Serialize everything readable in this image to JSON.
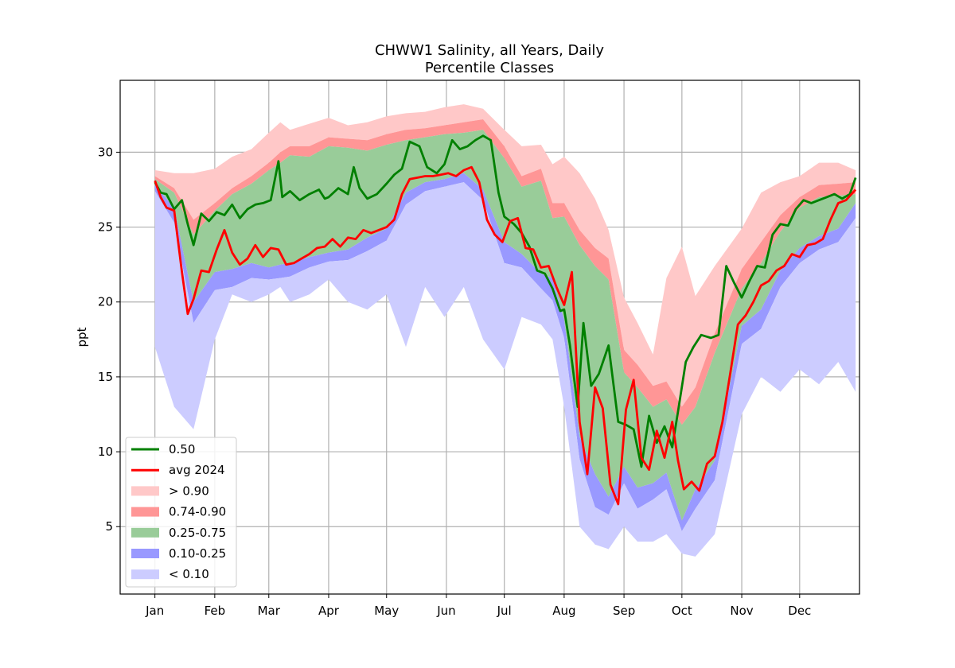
{
  "chart_data": {
    "type": "area",
    "title": "CHWW1 Salinity, all Years, Daily",
    "subtitle": "Percentile Classes",
    "xlabel": "",
    "ylabel": "ppt",
    "ylim": [
      0.5,
      34.8
    ],
    "xlim": [
      -18,
      365
    ],
    "x_tick_labels": [
      "Jan",
      "Feb",
      "Mar",
      "Apr",
      "May",
      "Jun",
      "Jul",
      "Aug",
      "Sep",
      "Oct",
      "Nov",
      "Dec"
    ],
    "x_tick_days": [
      0,
      31,
      59,
      90,
      120,
      151,
      181,
      212,
      243,
      273,
      304,
      334
    ],
    "y_ticks": [
      5,
      10,
      15,
      20,
      25,
      30
    ],
    "grid": true,
    "legend_position": "lower-left",
    "legend": [
      "0.50",
      "avg 2024",
      "> 0.90",
      "0.74-0.90",
      "0.25-0.75",
      "0.10-0.25",
      "< 0.10"
    ],
    "colors": {
      "median": "#008000",
      "avg": "#ff0000",
      "gt90": "#ffc8c8",
      "p74_90": "#ff9696",
      "p25_75": "#99cc99",
      "p10_25": "#9999ff",
      "lt10": "#ccccff"
    },
    "series": [
      {
        "name": "0.50",
        "x": [
          0,
          3,
          6,
          10,
          14,
          17,
          20,
          24,
          28,
          32,
          36,
          40,
          44,
          48,
          52,
          56,
          60,
          64,
          66,
          70,
          75,
          80,
          85,
          88,
          90,
          95,
          100,
          103,
          106,
          110,
          115,
          120,
          124,
          128,
          132,
          137,
          141,
          146,
          150,
          154,
          158,
          162,
          166,
          170,
          174,
          178,
          181,
          186,
          190,
          194,
          198,
          202,
          206,
          210,
          212,
          215,
          219,
          222,
          226,
          230,
          235,
          240,
          244,
          248,
          252,
          256,
          260,
          264,
          268,
          271,
          275,
          279,
          283,
          288,
          292,
          296,
          300,
          304,
          308,
          312,
          316,
          320,
          324,
          328,
          332,
          336,
          340,
          344,
          348,
          352,
          356,
          360,
          363
        ],
        "y": [
          28.0,
          27.3,
          27.2,
          26.2,
          26.8,
          25.2,
          23.8,
          25.9,
          25.4,
          26.0,
          25.8,
          26.5,
          25.6,
          26.2,
          26.5,
          26.6,
          26.8,
          29.4,
          27.0,
          27.4,
          26.8,
          27.2,
          27.5,
          26.9,
          27.0,
          27.6,
          27.2,
          29.0,
          27.6,
          26.9,
          27.2,
          27.9,
          28.5,
          28.9,
          30.7,
          30.4,
          29.0,
          28.6,
          29.2,
          30.8,
          30.2,
          30.4,
          30.8,
          31.1,
          30.8,
          27.3,
          25.7,
          25.2,
          24.6,
          23.7,
          22.1,
          21.9,
          20.9,
          19.4,
          19.5,
          17.1,
          13.0,
          18.6,
          14.4,
          15.2,
          17.1,
          12.0,
          11.8,
          11.5,
          9.0,
          12.4,
          10.6,
          11.7,
          10.3,
          12.7,
          16.0,
          17.0,
          17.8,
          17.6,
          17.8,
          22.4,
          21.3,
          20.3,
          21.4,
          22.4,
          22.3,
          24.5,
          25.2,
          25.1,
          26.2,
          26.8,
          26.6,
          26.8,
          27.0,
          27.2,
          26.9,
          27.2,
          28.3
        ]
      },
      {
        "name": "avg 2024",
        "x": [
          0,
          3,
          6,
          10,
          14,
          17,
          20,
          24,
          28,
          32,
          36,
          40,
          44,
          48,
          52,
          56,
          60,
          64,
          68,
          72,
          76,
          80,
          84,
          88,
          92,
          96,
          100,
          104,
          108,
          112,
          116,
          120,
          124,
          128,
          132,
          136,
          140,
          144,
          148,
          152,
          156,
          160,
          164,
          168,
          172,
          176,
          180,
          184,
          188,
          192,
          196,
          200,
          204,
          208,
          212,
          216,
          220,
          224,
          228,
          232,
          236,
          240,
          244,
          248,
          252,
          256,
          260,
          264,
          268,
          271,
          274,
          278,
          282,
          286,
          290,
          294,
          298,
          302,
          306,
          310,
          314,
          318,
          322,
          326,
          330,
          334,
          338,
          342,
          346,
          350,
          354,
          358,
          363
        ],
        "y": [
          28.1,
          27.0,
          26.3,
          26.1,
          22.0,
          19.2,
          20.2,
          22.1,
          22.0,
          23.5,
          24.8,
          23.3,
          22.5,
          22.9,
          23.8,
          23.0,
          23.6,
          23.5,
          22.5,
          22.6,
          22.9,
          23.2,
          23.6,
          23.7,
          24.2,
          23.7,
          24.3,
          24.2,
          24.8,
          24.6,
          24.8,
          25.0,
          25.5,
          27.2,
          28.2,
          28.3,
          28.4,
          28.4,
          28.5,
          28.6,
          28.4,
          28.8,
          29.0,
          28.0,
          25.5,
          24.5,
          24.0,
          25.4,
          25.6,
          23.6,
          23.5,
          22.3,
          22.4,
          21.0,
          19.8,
          22.0,
          12.0,
          8.5,
          14.3,
          12.9,
          7.8,
          6.5,
          12.8,
          14.8,
          9.6,
          8.8,
          11.4,
          9.6,
          12.0,
          9.4,
          7.5,
          8.0,
          7.4,
          9.2,
          9.7,
          12.0,
          15.2,
          18.5,
          19.1,
          20.0,
          21.1,
          21.4,
          22.1,
          22.4,
          23.2,
          23.0,
          23.8,
          23.9,
          24.2,
          25.5,
          26.6,
          26.8,
          27.5
        ]
      }
    ],
    "bands": [
      {
        "name": "> 0.90",
        "x": [
          0,
          10,
          20,
          31,
          40,
          50,
          59,
          65,
          70,
          80,
          90,
          100,
          110,
          120,
          130,
          140,
          150,
          160,
          170,
          181,
          190,
          200,
          206,
          212,
          220,
          228,
          235,
          243,
          250,
          258,
          265,
          273,
          280,
          290,
          304,
          314,
          324,
          334,
          344,
          354,
          363
        ],
        "low": [
          28.4,
          27.6,
          25.5,
          26.6,
          27.6,
          28.4,
          29.3,
          30.0,
          30.4,
          30.4,
          31.0,
          30.9,
          30.8,
          31.2,
          31.5,
          31.6,
          31.8,
          32.0,
          32.2,
          30.4,
          28.4,
          28.9,
          26.6,
          26.6,
          24.8,
          23.6,
          22.9,
          16.8,
          15.8,
          14.4,
          14.7,
          13.0,
          14.3,
          17.9,
          22.2,
          24.0,
          25.8,
          27.0,
          27.8,
          27.9,
          28.0
        ],
        "high": [
          28.8,
          28.6,
          28.6,
          28.9,
          29.7,
          30.2,
          31.3,
          32.0,
          31.5,
          31.9,
          32.3,
          31.8,
          32.0,
          32.4,
          32.6,
          32.7,
          33.0,
          33.2,
          32.9,
          31.5,
          30.4,
          30.5,
          29.2,
          29.7,
          28.6,
          26.9,
          24.8,
          20.3,
          18.6,
          16.5,
          21.6,
          23.7,
          20.4,
          22.4,
          24.9,
          27.3,
          28.0,
          28.4,
          29.3,
          29.3,
          28.8
        ]
      },
      {
        "name": "0.74-0.90",
        "x": [
          0,
          10,
          20,
          31,
          40,
          50,
          59,
          65,
          70,
          80,
          90,
          100,
          110,
          120,
          130,
          140,
          150,
          160,
          170,
          181,
          190,
          200,
          206,
          212,
          220,
          228,
          235,
          243,
          250,
          258,
          265,
          273,
          280,
          290,
          304,
          314,
          324,
          334,
          344,
          354,
          363
        ],
        "low": [
          28.2,
          27.3,
          24.5,
          26.1,
          27.2,
          27.9,
          28.8,
          29.3,
          29.8,
          29.7,
          30.4,
          30.3,
          30.1,
          30.5,
          30.8,
          31.0,
          31.2,
          31.3,
          31.5,
          29.6,
          27.7,
          28.1,
          25.6,
          25.7,
          23.8,
          22.4,
          21.5,
          15.3,
          14.3,
          13.0,
          13.5,
          11.8,
          13.0,
          16.6,
          20.9,
          22.6,
          24.7,
          26.3,
          27.0,
          27.1,
          27.2
        ],
        "high": [
          28.4,
          27.6,
          25.5,
          26.6,
          27.6,
          28.4,
          29.3,
          30.0,
          30.4,
          30.4,
          31.0,
          30.9,
          30.8,
          31.2,
          31.5,
          31.6,
          31.8,
          32.0,
          32.2,
          30.4,
          28.4,
          28.9,
          26.6,
          26.6,
          24.8,
          23.6,
          22.9,
          16.8,
          15.8,
          14.4,
          14.7,
          13.0,
          14.3,
          17.9,
          22.2,
          24.0,
          25.8,
          27.0,
          27.8,
          27.9,
          28.0
        ]
      },
      {
        "name": "0.25-0.75",
        "x": [
          0,
          10,
          20,
          31,
          40,
          50,
          59,
          65,
          70,
          80,
          90,
          100,
          110,
          120,
          130,
          140,
          150,
          160,
          170,
          181,
          190,
          200,
          206,
          212,
          220,
          228,
          235,
          243,
          250,
          258,
          265,
          273,
          280,
          290,
          304,
          314,
          324,
          334,
          344,
          354,
          363
        ],
        "low": [
          27.8,
          26.3,
          20.0,
          22.0,
          22.2,
          22.6,
          22.3,
          22.5,
          22.6,
          23.0,
          23.3,
          23.5,
          24.3,
          24.9,
          27.3,
          28.0,
          28.2,
          28.6,
          27.5,
          24.0,
          23.2,
          21.9,
          21.6,
          18.8,
          11.0,
          8.5,
          7.0,
          9.0,
          7.6,
          7.9,
          8.6,
          5.4,
          7.5,
          9.4,
          18.4,
          19.5,
          22.1,
          23.6,
          24.4,
          24.9,
          26.6
        ],
        "high": [
          28.2,
          27.3,
          24.5,
          26.1,
          27.2,
          27.9,
          28.8,
          29.3,
          29.8,
          29.7,
          30.4,
          30.3,
          30.1,
          30.5,
          30.8,
          31.0,
          31.2,
          31.3,
          31.5,
          29.6,
          27.7,
          28.1,
          25.6,
          25.7,
          23.8,
          22.4,
          21.5,
          15.3,
          14.3,
          13.0,
          13.5,
          11.8,
          13.0,
          16.6,
          20.9,
          22.6,
          24.7,
          26.3,
          27.0,
          27.1,
          27.2
        ]
      },
      {
        "name": "0.10-0.25",
        "x": [
          0,
          10,
          20,
          31,
          40,
          50,
          59,
          65,
          70,
          80,
          90,
          100,
          110,
          120,
          130,
          140,
          150,
          160,
          170,
          181,
          190,
          200,
          206,
          212,
          220,
          228,
          235,
          243,
          250,
          258,
          265,
          273,
          280,
          290,
          304,
          314,
          324,
          334,
          344,
          354,
          363
        ],
        "low": [
          27.4,
          25.3,
          18.6,
          20.8,
          21.0,
          21.6,
          21.5,
          21.6,
          21.7,
          22.3,
          22.7,
          22.8,
          23.4,
          24.1,
          26.5,
          27.4,
          27.7,
          28.0,
          26.8,
          22.6,
          22.3,
          20.9,
          20.1,
          17.6,
          9.5,
          6.3,
          5.8,
          7.9,
          6.2,
          6.8,
          7.5,
          4.7,
          6.2,
          8.1,
          17.2,
          18.2,
          21.0,
          22.6,
          23.5,
          24.0,
          25.6
        ],
        "high": [
          27.8,
          26.3,
          20.0,
          22.0,
          22.2,
          22.6,
          22.3,
          22.5,
          22.6,
          23.0,
          23.3,
          23.5,
          24.3,
          24.9,
          27.3,
          28.0,
          28.2,
          28.6,
          27.5,
          24.0,
          23.2,
          21.9,
          21.6,
          18.8,
          11.0,
          8.5,
          7.0,
          9.0,
          7.6,
          7.9,
          8.6,
          5.4,
          7.5,
          9.4,
          18.4,
          19.5,
          22.1,
          23.6,
          24.4,
          24.9,
          26.6
        ]
      },
      {
        "name": "< 0.10",
        "x": [
          0,
          10,
          20,
          31,
          40,
          50,
          59,
          65,
          70,
          80,
          90,
          100,
          110,
          120,
          130,
          140,
          150,
          160,
          170,
          181,
          190,
          200,
          206,
          212,
          220,
          228,
          235,
          243,
          250,
          258,
          265,
          273,
          280,
          290,
          304,
          314,
          324,
          334,
          344,
          354,
          363
        ],
        "low": [
          17.0,
          13.0,
          11.5,
          17.5,
          20.5,
          20.0,
          20.5,
          21.0,
          20.0,
          20.5,
          21.5,
          20.0,
          19.5,
          20.5,
          17.0,
          21.0,
          19.0,
          21.0,
          17.5,
          15.5,
          19.0,
          18.5,
          17.5,
          13.0,
          5.0,
          3.8,
          3.5,
          5.0,
          4.0,
          4.0,
          4.5,
          3.2,
          3.0,
          4.5,
          12.5,
          15.0,
          14.0,
          15.5,
          14.5,
          16.0,
          14.0
        ],
        "high": [
          27.4,
          25.3,
          18.6,
          20.8,
          21.0,
          21.6,
          21.5,
          21.6,
          21.7,
          22.3,
          22.7,
          22.8,
          23.4,
          24.1,
          26.5,
          27.4,
          27.7,
          28.0,
          26.8,
          22.6,
          22.3,
          20.9,
          20.1,
          17.6,
          9.5,
          6.3,
          5.8,
          7.9,
          6.2,
          6.8,
          7.5,
          4.7,
          6.2,
          8.1,
          17.2,
          18.2,
          21.0,
          22.6,
          23.5,
          24.0,
          25.6
        ]
      }
    ]
  }
}
